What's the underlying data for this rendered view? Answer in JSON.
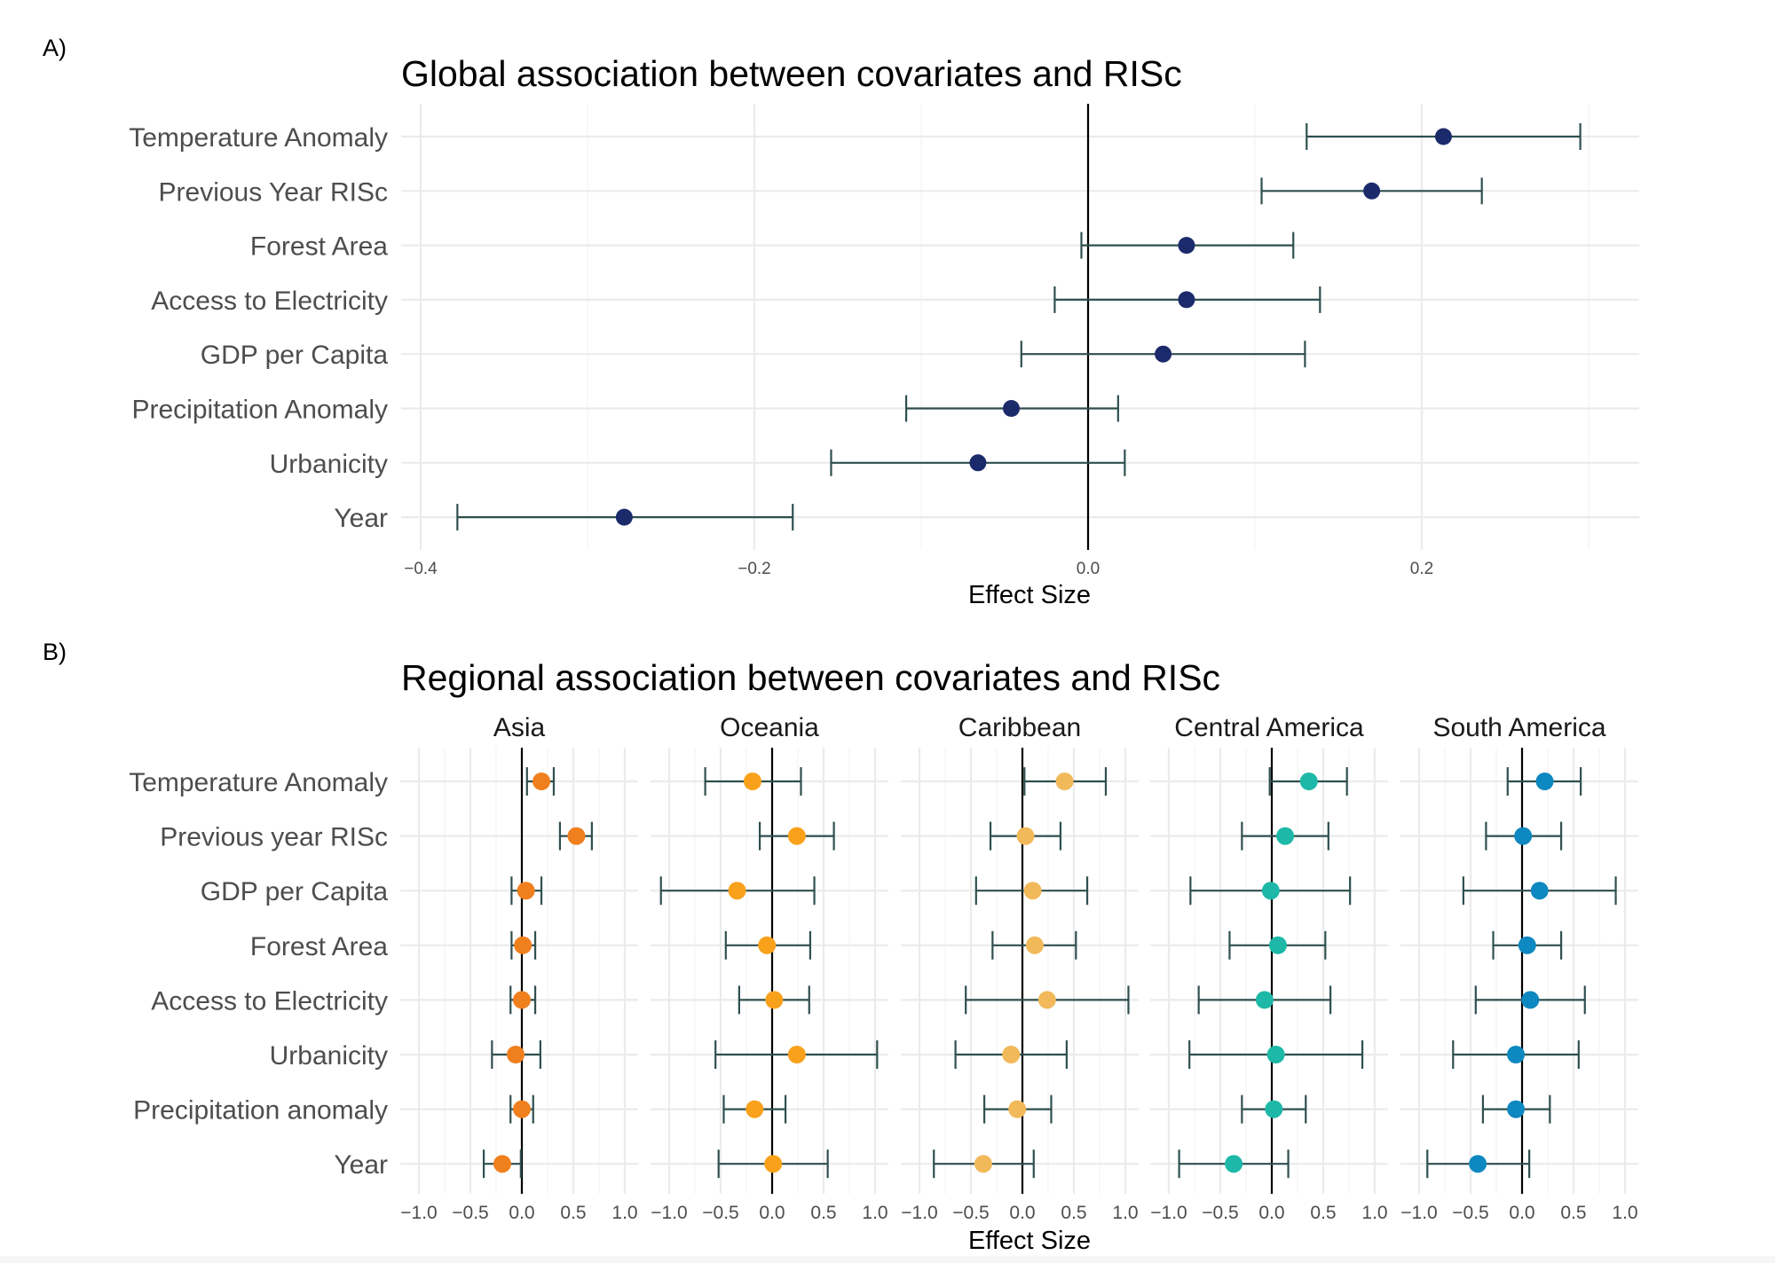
{
  "chart_data": [
    {
      "panel_tag": "A)",
      "type": "scatter",
      "subtype": "forest-plot",
      "title": "Global association between covariates and RISc",
      "xlabel": "Effect Size",
      "ylabel": "",
      "xlim": [
        -0.412,
        0.329
      ],
      "xticks": [
        -0.4,
        -0.2,
        0.0,
        0.2
      ],
      "xtick_labels": [
        "−0.4",
        "−0.2",
        "0.0",
        "0.2"
      ],
      "grid": true,
      "reference_line": 0,
      "color": "#1b2a6b",
      "errorbar_color": "#2f4f4f",
      "categories": [
        "Temperature Anomaly",
        "Previous Year RISc",
        "Forest Area",
        "Access to Electricity",
        "GDP per Capita",
        "Precipitation Anomaly",
        "Urbanicity",
        "Year"
      ],
      "estimates": [
        0.213,
        0.17,
        0.059,
        0.059,
        0.045,
        -0.046,
        -0.066,
        -0.278
      ],
      "lower": [
        0.131,
        0.104,
        -0.004,
        -0.02,
        -0.04,
        -0.109,
        -0.154,
        -0.378
      ],
      "upper": [
        0.295,
        0.236,
        0.123,
        0.139,
        0.13,
        0.018,
        0.022,
        -0.177
      ]
    },
    {
      "panel_tag": "B)",
      "type": "scatter",
      "subtype": "faceted-forest-plot",
      "title": "Regional association between covariates and RISc",
      "xlabel": "Effect Size",
      "ylabel": "",
      "xlim": [
        -1.15,
        1.15
      ],
      "xticks": [
        -1.0,
        -0.5,
        0.0,
        0.5,
        1.0
      ],
      "xtick_labels": [
        "−1.0",
        "−0.5",
        "0.0",
        "0.5",
        "1.0"
      ],
      "grid": true,
      "reference_line": 0,
      "errorbar_color": "#2f4f4f",
      "categories": [
        "Temperature Anomaly",
        "Previous year RISc",
        "GDP per Capita",
        "Forest Area",
        "Access to Electricity",
        "Urbanicity",
        "Precipitation anomaly",
        "Year"
      ],
      "facets": [
        {
          "name": "Asia",
          "color": "#f07f1e",
          "estimates": [
            0.19,
            0.53,
            0.04,
            0.01,
            0.0,
            -0.06,
            0.0,
            -0.19
          ],
          "lower": [
            0.05,
            0.37,
            -0.1,
            -0.1,
            -0.11,
            -0.29,
            -0.11,
            -0.37
          ],
          "upper": [
            0.31,
            0.68,
            0.19,
            0.13,
            0.13,
            0.18,
            0.11,
            -0.01
          ]
        },
        {
          "name": "Oceania",
          "color": "#f9a11b",
          "estimates": [
            -0.19,
            0.24,
            -0.34,
            -0.05,
            0.02,
            0.24,
            -0.17,
            0.01
          ],
          "lower": [
            -0.65,
            -0.12,
            -1.08,
            -0.45,
            -0.32,
            -0.55,
            -0.47,
            -0.52
          ],
          "upper": [
            0.28,
            0.6,
            0.41,
            0.37,
            0.36,
            1.02,
            0.13,
            0.54
          ]
        },
        {
          "name": "Caribbean",
          "color": "#f2b95a",
          "estimates": [
            0.41,
            0.03,
            0.1,
            0.12,
            0.24,
            -0.11,
            -0.05,
            -0.38
          ],
          "lower": [
            0.02,
            -0.31,
            -0.45,
            -0.29,
            -0.55,
            -0.65,
            -0.37,
            -0.86
          ],
          "upper": [
            0.81,
            0.37,
            0.63,
            0.52,
            1.03,
            0.43,
            0.28,
            0.11
          ]
        },
        {
          "name": "Central America",
          "color": "#1db8a8",
          "estimates": [
            0.36,
            0.13,
            -0.01,
            0.06,
            -0.07,
            0.04,
            0.02,
            -0.37
          ],
          "lower": [
            -0.02,
            -0.29,
            -0.79,
            -0.41,
            -0.71,
            -0.8,
            -0.29,
            -0.9
          ],
          "upper": [
            0.73,
            0.55,
            0.76,
            0.52,
            0.57,
            0.88,
            0.33,
            0.16
          ]
        },
        {
          "name": "South America",
          "color": "#0e88c0",
          "estimates": [
            0.22,
            0.01,
            0.17,
            0.05,
            0.08,
            -0.06,
            -0.06,
            -0.43
          ],
          "lower": [
            -0.14,
            -0.35,
            -0.57,
            -0.28,
            -0.45,
            -0.67,
            -0.38,
            -0.92
          ],
          "upper": [
            0.57,
            0.38,
            0.91,
            0.38,
            0.61,
            0.55,
            0.27,
            0.07
          ]
        }
      ]
    }
  ]
}
